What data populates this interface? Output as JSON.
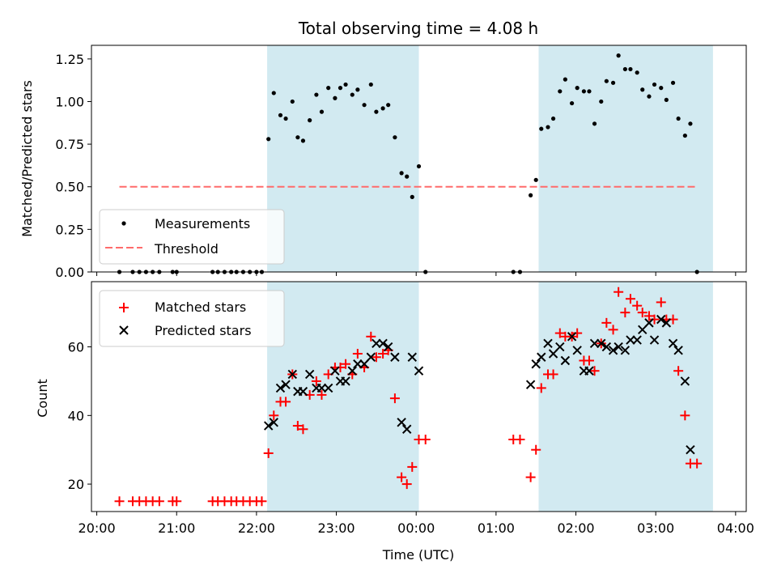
{
  "figure": {
    "title": "Total observing time = 4.08 h",
    "colors": {
      "shade": "#add8e6",
      "measurement": "#000000",
      "threshold": "#ff6b6b",
      "matched": "#ff0000",
      "predicted": "#000000"
    }
  },
  "chart_data": [
    {
      "type": "scatter",
      "title": "Total observing time = 4.08 h",
      "xlabel": "",
      "ylabel": "Matched/Predicted stars",
      "xlim": [
        "19:56",
        "04:08"
      ],
      "ylim": [
        0,
        1.33
      ],
      "x_ticks": [
        "20:00",
        "21:00",
        "22:00",
        "23:00",
        "00:00",
        "01:00",
        "02:00",
        "03:00",
        "04:00"
      ],
      "y_ticks": [
        "0.00",
        "0.25",
        "0.50",
        "0.75",
        "1.00",
        "1.25"
      ],
      "shaded_intervals": [
        [
          "22:08",
          "00:02"
        ],
        [
          "01:32",
          "03:43"
        ]
      ],
      "legend": {
        "position": "lower-left",
        "entries": [
          {
            "label": "Measurements",
            "marker": "dot"
          },
          {
            "label": "Threshold",
            "marker": "dashed-line"
          }
        ]
      },
      "series": [
        {
          "name": "Measurements",
          "points": [
            [
              "20:17",
              0
            ],
            [
              "20:27",
              0
            ],
            [
              "20:32",
              0
            ],
            [
              "20:37",
              0
            ],
            [
              "20:42",
              0
            ],
            [
              "20:47",
              0
            ],
            [
              "20:57",
              0
            ],
            [
              "21:00",
              0
            ],
            [
              "21:27",
              0
            ],
            [
              "21:31",
              0
            ],
            [
              "21:36",
              0
            ],
            [
              "21:41",
              0
            ],
            [
              "21:45",
              0
            ],
            [
              "21:50",
              0
            ],
            [
              "21:55",
              0
            ],
            [
              "22:00",
              0
            ],
            [
              "22:04",
              0
            ],
            [
              "22:09",
              0.78
            ],
            [
              "22:13",
              1.05
            ],
            [
              "22:18",
              0.92
            ],
            [
              "22:22",
              0.9
            ],
            [
              "22:27",
              1.0
            ],
            [
              "22:31",
              0.79
            ],
            [
              "22:35",
              0.77
            ],
            [
              "22:40",
              0.89
            ],
            [
              "22:45",
              1.04
            ],
            [
              "22:49",
              0.94
            ],
            [
              "22:54",
              1.08
            ],
            [
              "22:59",
              1.02
            ],
            [
              "23:03",
              1.08
            ],
            [
              "23:07",
              1.1
            ],
            [
              "23:12",
              1.04
            ],
            [
              "23:16",
              1.07
            ],
            [
              "23:21",
              0.98
            ],
            [
              "23:26",
              1.1
            ],
            [
              "23:30",
              0.94
            ],
            [
              "23:35",
              0.96
            ],
            [
              "23:39",
              0.98
            ],
            [
              "23:44",
              0.79
            ],
            [
              "23:49",
              0.58
            ],
            [
              "23:53",
              0.56
            ],
            [
              "23:57",
              0.44
            ],
            [
              "00:02",
              0.62
            ],
            [
              "00:07",
              0.0
            ],
            [
              "01:13",
              0
            ],
            [
              "01:18",
              0
            ],
            [
              "01:26",
              0.45
            ],
            [
              "01:30",
              0.54
            ],
            [
              "01:34",
              0.84
            ],
            [
              "01:39",
              0.85
            ],
            [
              "01:43",
              0.9
            ],
            [
              "01:48",
              1.06
            ],
            [
              "01:52",
              1.13
            ],
            [
              "01:57",
              0.99
            ],
            [
              "02:01",
              1.08
            ],
            [
              "02:06",
              1.06
            ],
            [
              "02:10",
              1.06
            ],
            [
              "02:14",
              0.87
            ],
            [
              "02:19",
              1.0
            ],
            [
              "02:23",
              1.12
            ],
            [
              "02:28",
              1.11
            ],
            [
              "02:32",
              1.27
            ],
            [
              "02:37",
              1.19
            ],
            [
              "02:41",
              1.19
            ],
            [
              "02:46",
              1.17
            ],
            [
              "02:50",
              1.07
            ],
            [
              "02:55",
              1.03
            ],
            [
              "02:59",
              1.1
            ],
            [
              "03:04",
              1.08
            ],
            [
              "03:08",
              1.01
            ],
            [
              "03:13",
              1.11
            ],
            [
              "03:17",
              0.9
            ],
            [
              "03:22",
              0.8
            ],
            [
              "03:26",
              0.87
            ],
            [
              "03:31",
              0.0
            ]
          ]
        },
        {
          "name": "Threshold",
          "points": [
            [
              "20:17",
              0.5
            ],
            [
              "03:31",
              0.5
            ]
          ]
        }
      ]
    },
    {
      "type": "scatter",
      "xlabel": "Time (UTC)",
      "ylabel": "Count",
      "xlim": [
        "19:56",
        "04:08"
      ],
      "ylim": [
        12,
        79
      ],
      "x_ticks": [
        "20:00",
        "21:00",
        "22:00",
        "23:00",
        "00:00",
        "01:00",
        "02:00",
        "03:00",
        "04:00"
      ],
      "y_ticks": [
        "20",
        "40",
        "60"
      ],
      "shaded_intervals": [
        [
          "22:08",
          "00:02"
        ],
        [
          "01:32",
          "03:43"
        ]
      ],
      "legend": {
        "position": "upper-left",
        "entries": [
          {
            "label": "Matched stars",
            "marker": "plus"
          },
          {
            "label": "Predicted stars",
            "marker": "x"
          }
        ]
      },
      "series": [
        {
          "name": "Matched stars",
          "points": [
            [
              "20:17",
              15
            ],
            [
              "20:27",
              15
            ],
            [
              "20:32",
              15
            ],
            [
              "20:37",
              15
            ],
            [
              "20:42",
              15
            ],
            [
              "20:47",
              15
            ],
            [
              "20:57",
              15
            ],
            [
              "21:00",
              15
            ],
            [
              "21:27",
              15
            ],
            [
              "21:31",
              15
            ],
            [
              "21:36",
              15
            ],
            [
              "21:41",
              15
            ],
            [
              "21:45",
              15
            ],
            [
              "21:50",
              15
            ],
            [
              "21:55",
              15
            ],
            [
              "22:00",
              15
            ],
            [
              "22:04",
              15
            ],
            [
              "22:09",
              29
            ],
            [
              "22:13",
              40
            ],
            [
              "22:18",
              44
            ],
            [
              "22:22",
              44
            ],
            [
              "22:27",
              52
            ],
            [
              "22:31",
              37
            ],
            [
              "22:35",
              36
            ],
            [
              "22:40",
              46
            ],
            [
              "22:45",
              50
            ],
            [
              "22:49",
              46
            ],
            [
              "22:54",
              52
            ],
            [
              "22:59",
              54
            ],
            [
              "23:03",
              54
            ],
            [
              "23:07",
              55
            ],
            [
              "23:12",
              52
            ],
            [
              "23:16",
              58
            ],
            [
              "23:21",
              54
            ],
            [
              "23:26",
              63
            ],
            [
              "23:30",
              57
            ],
            [
              "23:35",
              58
            ],
            [
              "23:39",
              59
            ],
            [
              "23:44",
              45
            ],
            [
              "23:49",
              22
            ],
            [
              "23:53",
              20
            ],
            [
              "23:57",
              25
            ],
            [
              "00:02",
              33
            ],
            [
              "00:07",
              33
            ],
            [
              "01:13",
              33
            ],
            [
              "01:18",
              33
            ],
            [
              "01:26",
              22
            ],
            [
              "01:30",
              30
            ],
            [
              "01:34",
              48
            ],
            [
              "01:39",
              52
            ],
            [
              "01:43",
              52
            ],
            [
              "01:48",
              64
            ],
            [
              "01:52",
              63
            ],
            [
              "01:57",
              63
            ],
            [
              "02:01",
              64
            ],
            [
              "02:06",
              56
            ],
            [
              "02:10",
              56
            ],
            [
              "02:14",
              53
            ],
            [
              "02:19",
              61
            ],
            [
              "02:23",
              67
            ],
            [
              "02:28",
              65
            ],
            [
              "02:32",
              76
            ],
            [
              "02:37",
              70
            ],
            [
              "02:41",
              74
            ],
            [
              "02:46",
              72
            ],
            [
              "02:50",
              70
            ],
            [
              "02:55",
              69
            ],
            [
              "02:59",
              68
            ],
            [
              "03:04",
              73
            ],
            [
              "03:08",
              68
            ],
            [
              "03:13",
              68
            ],
            [
              "03:17",
              53
            ],
            [
              "03:22",
              40
            ],
            [
              "03:26",
              26
            ],
            [
              "03:31",
              26
            ]
          ]
        },
        {
          "name": "Predicted stars",
          "points": [
            [
              "22:09",
              37
            ],
            [
              "22:13",
              38
            ],
            [
              "22:18",
              48
            ],
            [
              "22:22",
              49
            ],
            [
              "22:27",
              52
            ],
            [
              "22:31",
              47
            ],
            [
              "22:35",
              47
            ],
            [
              "22:40",
              52
            ],
            [
              "22:45",
              48
            ],
            [
              "22:49",
              48
            ],
            [
              "22:54",
              48
            ],
            [
              "22:59",
              53
            ],
            [
              "23:03",
              50
            ],
            [
              "23:07",
              50
            ],
            [
              "23:12",
              53
            ],
            [
              "23:16",
              55
            ],
            [
              "23:21",
              55
            ],
            [
              "23:26",
              57
            ],
            [
              "23:30",
              61
            ],
            [
              "23:35",
              61
            ],
            [
              "23:39",
              60
            ],
            [
              "23:44",
              57
            ],
            [
              "23:49",
              38
            ],
            [
              "23:53",
              36
            ],
            [
              "23:57",
              57
            ],
            [
              "00:02",
              53
            ],
            [
              "01:26",
              49
            ],
            [
              "01:30",
              55
            ],
            [
              "01:34",
              57
            ],
            [
              "01:39",
              61
            ],
            [
              "01:43",
              58
            ],
            [
              "01:48",
              60
            ],
            [
              "01:52",
              56
            ],
            [
              "01:57",
              63
            ],
            [
              "02:01",
              59
            ],
            [
              "02:06",
              53
            ],
            [
              "02:10",
              53
            ],
            [
              "02:14",
              61
            ],
            [
              "02:19",
              61
            ],
            [
              "02:23",
              60
            ],
            [
              "02:28",
              59
            ],
            [
              "02:32",
              60
            ],
            [
              "02:37",
              59
            ],
            [
              "02:41",
              62
            ],
            [
              "02:46",
              62
            ],
            [
              "02:50",
              65
            ],
            [
              "02:55",
              67
            ],
            [
              "02:59",
              62
            ],
            [
              "03:04",
              68
            ],
            [
              "03:08",
              67
            ],
            [
              "03:13",
              61
            ],
            [
              "03:17",
              59
            ],
            [
              "03:22",
              50
            ],
            [
              "03:26",
              30
            ]
          ]
        }
      ]
    }
  ]
}
